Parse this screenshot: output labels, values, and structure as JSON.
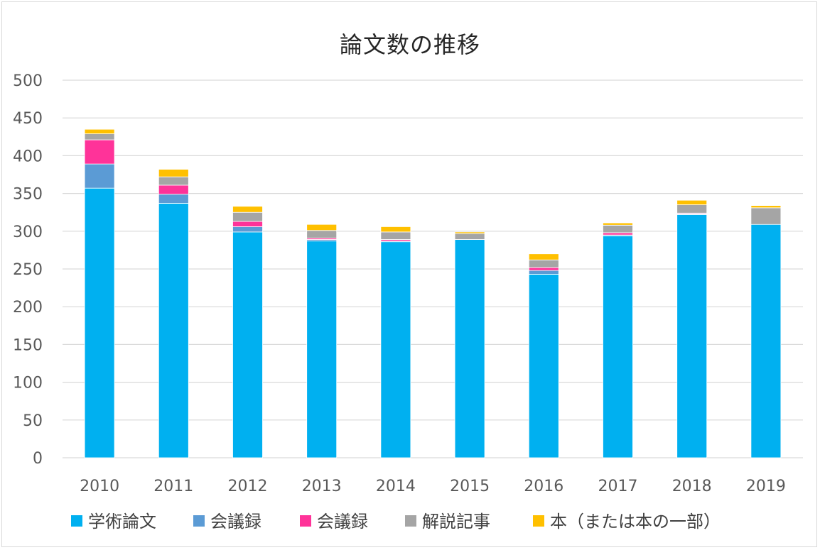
{
  "chart_data": {
    "type": "bar",
    "stacked": true,
    "title": "論文数の推移",
    "xlabel": "",
    "ylabel": "",
    "ylim": [
      0,
      500
    ],
    "yticks": [
      0,
      50,
      100,
      150,
      200,
      250,
      300,
      350,
      400,
      450,
      500
    ],
    "grid": true,
    "legend_position": "bottom",
    "categories": [
      "2010",
      "2011",
      "2012",
      "2013",
      "2014",
      "2015",
      "2016",
      "2017",
      "2018",
      "2019"
    ],
    "series": [
      {
        "name": "学術論文",
        "color": "#00b0f0",
        "values": [
          357,
          337,
          299,
          287,
          286,
          289,
          243,
          294,
          322,
          309
        ]
      },
      {
        "name": "会議録",
        "color": "#5b9bd5",
        "values": [
          32,
          12,
          7,
          2,
          1,
          0,
          5,
          1,
          1,
          0
        ]
      },
      {
        "name": "会議録",
        "color": "#ff3399",
        "values": [
          32,
          12,
          7,
          2,
          2,
          0,
          4,
          3,
          1,
          0
        ]
      },
      {
        "name": "解説記事",
        "color": "#a5a5a5",
        "values": [
          8,
          11,
          12,
          10,
          10,
          8,
          10,
          10,
          11,
          22
        ]
      },
      {
        "name": "本（または本の一部）",
        "color": "#ffc000",
        "values": [
          6,
          10,
          8,
          8,
          7,
          2,
          8,
          3,
          6,
          3
        ]
      }
    ]
  }
}
